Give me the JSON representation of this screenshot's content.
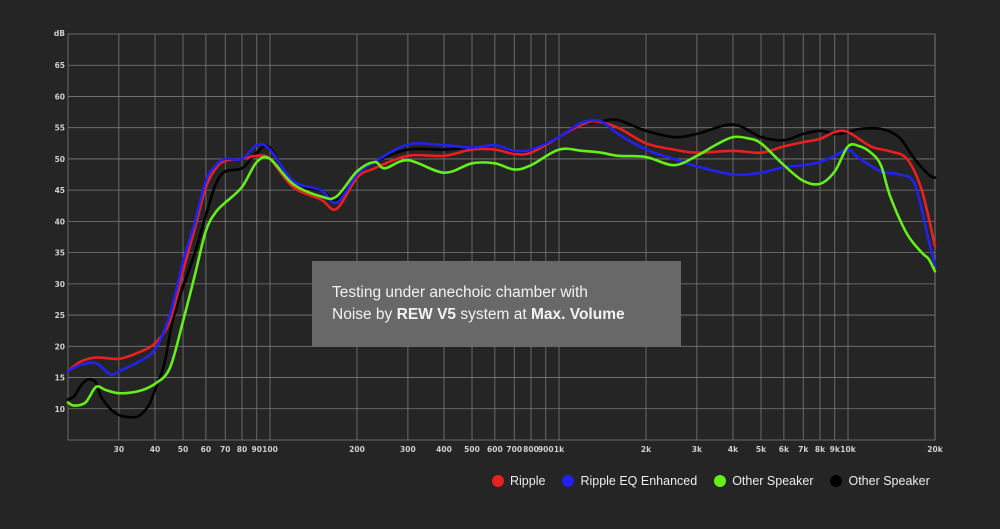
{
  "chart_data": {
    "type": "line",
    "ylabel": "dB",
    "xscale": "log",
    "xlim": [
      20,
      20000
    ],
    "ylim": [
      5,
      70
    ],
    "grid": true,
    "legend_position": "bottom-right",
    "y_ticks": [
      10,
      15,
      20,
      25,
      30,
      35,
      40,
      45,
      50,
      55,
      60,
      65
    ],
    "x_ticks": [
      {
        "value": 30,
        "label": "30"
      },
      {
        "value": 40,
        "label": "40"
      },
      {
        "value": 50,
        "label": "50"
      },
      {
        "value": 60,
        "label": "60"
      },
      {
        "value": 70,
        "label": "70"
      },
      {
        "value": 80,
        "label": "80"
      },
      {
        "value": 90,
        "label": "90"
      },
      {
        "value": 100,
        "label": "100"
      },
      {
        "value": 200,
        "label": "200"
      },
      {
        "value": 300,
        "label": "300"
      },
      {
        "value": 400,
        "label": "400"
      },
      {
        "value": 500,
        "label": "500"
      },
      {
        "value": 600,
        "label": "600"
      },
      {
        "value": 700,
        "label": "700"
      },
      {
        "value": 800,
        "label": "800"
      },
      {
        "value": 900,
        "label": "900"
      },
      {
        "value": 1000,
        "label": "1k"
      },
      {
        "value": 2000,
        "label": "2k"
      },
      {
        "value": 3000,
        "label": "3k"
      },
      {
        "value": 4000,
        "label": "4k"
      },
      {
        "value": 5000,
        "label": "5k"
      },
      {
        "value": 6000,
        "label": "6k"
      },
      {
        "value": 7000,
        "label": "7k"
      },
      {
        "value": 8000,
        "label": "8k"
      },
      {
        "value": 9000,
        "label": "9k"
      },
      {
        "value": 10000,
        "label": "10k"
      },
      {
        "value": 20000,
        "label": "20k"
      }
    ],
    "series": [
      {
        "name": "Ripple",
        "color": "#e8201f",
        "x": [
          20,
          22,
          25,
          30,
          35,
          40,
          45,
          50,
          55,
          60,
          65,
          70,
          80,
          90,
          100,
          120,
          150,
          170,
          200,
          230,
          300,
          400,
          500,
          600,
          700,
          800,
          1000,
          1200,
          1350,
          1600,
          2000,
          2500,
          3000,
          4000,
          5000,
          6000,
          7000,
          8000,
          9000,
          10000,
          12000,
          14000,
          16000,
          18000,
          20000
        ],
        "y": [
          16,
          17.5,
          18.2,
          18,
          19,
          20.5,
          24,
          32,
          39,
          45.5,
          48.5,
          49.7,
          50,
          50.5,
          50,
          45.5,
          43.5,
          42,
          47,
          48.5,
          50.5,
          50.5,
          51.5,
          51.5,
          50.8,
          51,
          53.5,
          55.5,
          56,
          55,
          52.5,
          51.5,
          51,
          51.3,
          51,
          52,
          52.7,
          53.2,
          54.3,
          54.3,
          52,
          51.2,
          50,
          45,
          36
        ]
      },
      {
        "name": "Ripple EQ Enhanced",
        "color": "#2222ee",
        "x": [
          20,
          22,
          25,
          28,
          30,
          35,
          40,
          45,
          50,
          55,
          60,
          65,
          70,
          80,
          90,
          100,
          120,
          150,
          170,
          200,
          230,
          300,
          400,
          500,
          600,
          700,
          800,
          1000,
          1200,
          1400,
          1600,
          2000,
          2500,
          3000,
          4000,
          5000,
          6000,
          7000,
          8000,
          9000,
          10000,
          11000,
          13000,
          15000,
          17000,
          19000,
          20000
        ],
        "y": [
          16,
          17,
          17.3,
          15.5,
          16,
          17.5,
          19.5,
          25,
          33.5,
          40,
          46.5,
          49,
          50,
          50,
          52.2,
          51.5,
          46.5,
          45,
          43,
          47.5,
          49.5,
          52.3,
          52.2,
          51.8,
          52.2,
          51.3,
          51.5,
          53.5,
          55.8,
          56,
          54,
          51.5,
          50,
          48.8,
          47.5,
          47.8,
          48.7,
          49,
          49.5,
          50.5,
          51.5,
          50,
          48,
          47.5,
          46,
          37,
          33
        ]
      },
      {
        "name": "Other Speaker",
        "color": "#66ee1a",
        "x": [
          20,
          21,
          23,
          25,
          27,
          30,
          35,
          40,
          45,
          50,
          55,
          60,
          65,
          70,
          80,
          90,
          100,
          120,
          150,
          170,
          200,
          230,
          250,
          300,
          400,
          500,
          600,
          700,
          800,
          1000,
          1200,
          1400,
          1600,
          2000,
          2500,
          3000,
          3500,
          4000,
          4500,
          5000,
          6000,
          7000,
          8000,
          9000,
          10000,
          11000,
          12000,
          13000,
          14000,
          16000,
          18000,
          19000,
          20000
        ],
        "y": [
          11,
          10.5,
          11,
          13.5,
          13,
          12.5,
          12.8,
          14,
          16.5,
          24,
          31.5,
          38.5,
          41.5,
          43,
          45.5,
          49.5,
          50,
          46,
          44,
          44,
          48,
          49.5,
          48.5,
          49.8,
          47.8,
          49.3,
          49.3,
          48.3,
          49,
          51.5,
          51.3,
          51,
          50.5,
          50.3,
          49,
          50.5,
          52.3,
          53.5,
          53.3,
          52.5,
          49,
          46.5,
          46,
          48,
          52,
          52,
          51,
          49,
          44,
          38,
          35,
          34,
          32
        ]
      },
      {
        "name": "Other Speaker",
        "color": "#000000",
        "x": [
          20,
          21,
          22,
          23,
          24,
          25,
          26,
          28,
          30,
          32,
          35,
          38,
          40,
          43,
          46,
          50,
          55,
          60,
          65,
          70,
          80,
          90,
          100,
          120,
          150,
          170,
          200,
          230,
          300,
          400,
          500,
          600,
          700,
          800,
          1000,
          1200,
          1400,
          1600,
          2000,
          2500,
          3000,
          4000,
          5000,
          6000,
          7000,
          8000,
          9000,
          10000,
          11000,
          13000,
          15000,
          17000,
          19000,
          20000
        ],
        "y": [
          11.5,
          12,
          13.5,
          14.5,
          14.7,
          14.2,
          12,
          10,
          9,
          8.7,
          8.8,
          10.5,
          13,
          17,
          24,
          29.5,
          35,
          41,
          46,
          48,
          48.5,
          51,
          51.8,
          46,
          45,
          43.5,
          47.5,
          49.5,
          51.5,
          51.5,
          51.8,
          51.5,
          51,
          51.5,
          53.5,
          55.5,
          56,
          56.2,
          54.5,
          53.5,
          54,
          55.5,
          53.5,
          53,
          54,
          54.5,
          54,
          54.3,
          54.8,
          54.8,
          53.5,
          50,
          47.5,
          47
        ]
      }
    ]
  },
  "annotation": {
    "line1": "Testing under anechoic chamber with",
    "line2_pre": "Noise by ",
    "line2_bold1": "REW V5",
    "line2_mid": " system at ",
    "line2_bold2": "Max. Volume"
  },
  "legend": [
    {
      "label": "Ripple",
      "color": "#e8201f"
    },
    {
      "label": "Ripple EQ Enhanced",
      "color": "#2222ee"
    },
    {
      "label": "Other Speaker",
      "color": "#66ee1a"
    },
    {
      "label": "Other Speaker",
      "color": "#000000"
    }
  ]
}
